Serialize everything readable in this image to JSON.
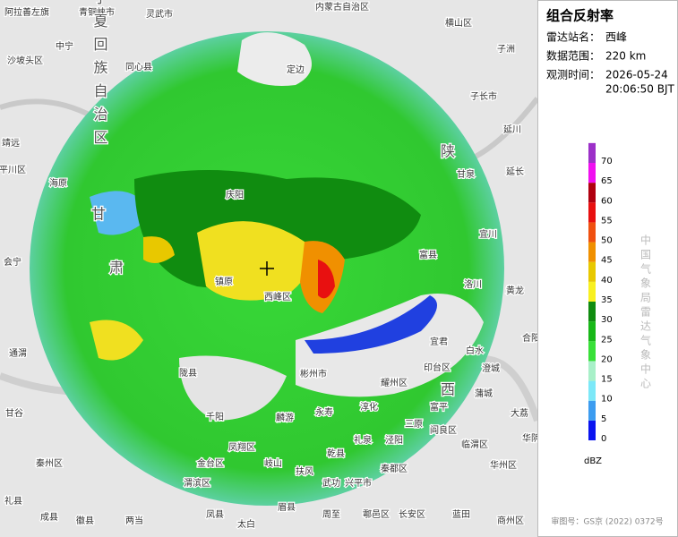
{
  "panel": {
    "title": "组合反射率",
    "info": [
      {
        "label": "雷达站名：",
        "value": "西峰"
      },
      {
        "label": "数据范围：",
        "value": "220 km"
      },
      {
        "label": "观测时间：",
        "value": "2026-05-24"
      }
    ],
    "time_extra": "20:06:50 BJT",
    "credit": "中国气象局雷达气象中心",
    "approval": "审图号：GS京 (2022) 0372号"
  },
  "map": {
    "legend": {
      "unit": "dBZ",
      "ticks": [
        0,
        5,
        10,
        15,
        20,
        25,
        30,
        35,
        40,
        45,
        50,
        55,
        60,
        65,
        70
      ],
      "colors": [
        "#0a14f0",
        "#3c9cf0",
        "#7ce8f8",
        "#a8f0c8",
        "#38e038",
        "#18b818",
        "#108c10",
        "#f8f020",
        "#e8c800",
        "#f09000",
        "#f05010",
        "#e81010",
        "#b00010",
        "#f010f0",
        "#9c30c8"
      ]
    },
    "labels": [
      "阿拉善左旗",
      "青铜峡市",
      "灵武市",
      "内蒙古自治区",
      "横山区",
      "子洲",
      "中宁",
      "沙坡头区",
      "同心县",
      "宁夏回族自治区",
      "定边",
      "子长市",
      "延川",
      "靖远",
      "平川区",
      "海原",
      "甘泉",
      "延长",
      "宜川",
      "会宁",
      "庆阳",
      "镇原",
      "西峰区",
      "富县",
      "洛川",
      "黄龙",
      "宜君",
      "白水",
      "合阳",
      "印台区",
      "澄城",
      "彬州市",
      "耀州区",
      "通渭",
      "甘谷",
      "陇县",
      "千阳",
      "麟游",
      "永寿",
      "淳化",
      "富平",
      "蒲城",
      "大荔",
      "凤翔区",
      "岐山",
      "乾县",
      "礼泉",
      "泾阳",
      "三原",
      "阎良区",
      "临渭区",
      "华州区",
      "华阴",
      "秦州区",
      "金台区",
      "扶风",
      "武功",
      "兴平市",
      "秦都区",
      "礼县",
      "渭滨区",
      "眉县",
      "周至",
      "鄠邑区",
      "长安区",
      "蓝田",
      "两当",
      "凤县",
      "太白",
      "成县",
      "徽县",
      "商州区",
      "陕",
      "西",
      "甘",
      "肃"
    ]
  }
}
